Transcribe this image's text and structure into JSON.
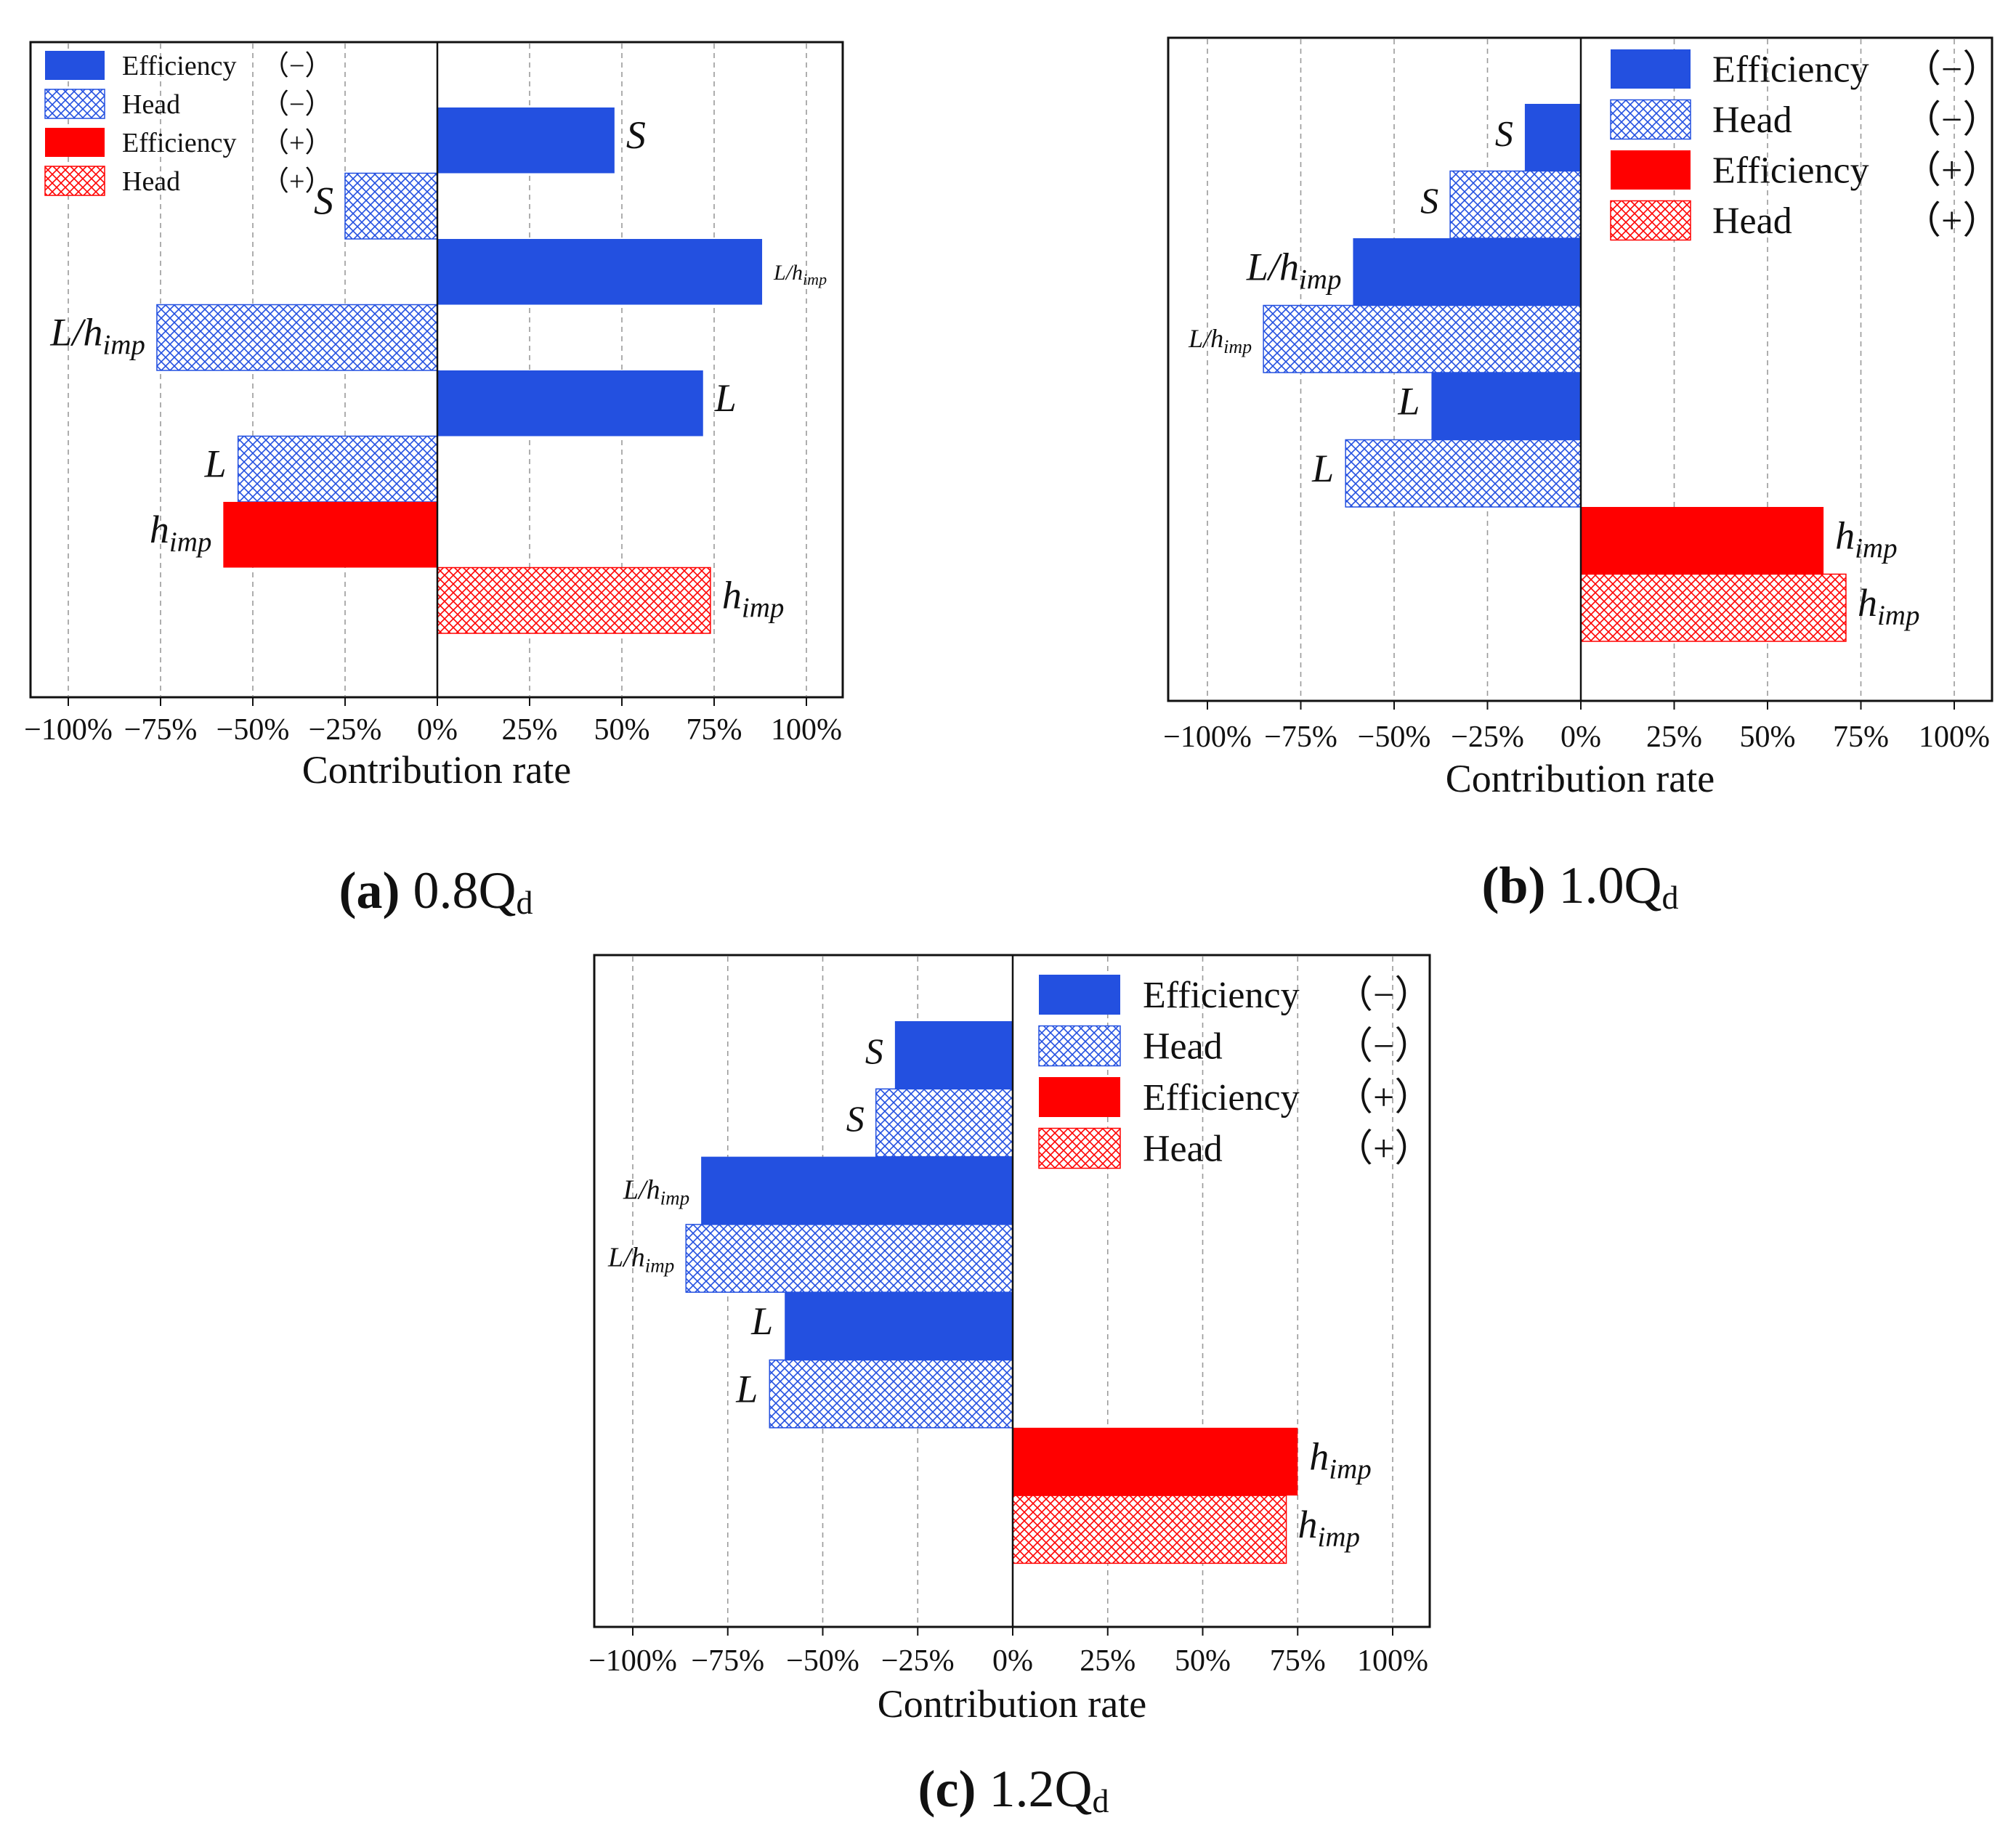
{
  "figure": {
    "xlabel": "Contribution rate",
    "x_ticks": [
      "−100%",
      "−75%",
      "−50%",
      "−25%",
      "0%",
      "25%",
      "50%",
      "75%",
      "100%"
    ],
    "legend": [
      {
        "label": "Efficiency",
        "sign": "（−）",
        "color": "#2350E0",
        "pattern": "solid"
      },
      {
        "label": "Head",
        "sign": "（−）",
        "color": "#2350E0",
        "pattern": "crosshatch"
      },
      {
        "label": "Efficiency",
        "sign": "（+）",
        "color": "#FF0000",
        "pattern": "solid"
      },
      {
        "label": "Head",
        "sign": "（+）",
        "color": "#FF0000",
        "pattern": "crosshatch"
      }
    ],
    "colors": {
      "negative": "#2350E0",
      "positive": "#FF0000"
    }
  },
  "chart_data": [
    {
      "type": "bar",
      "orientation": "horizontal",
      "caption_letter": "(a)",
      "caption_text": "0.8Q",
      "caption_sub": "d",
      "xlabel": "Contribution rate",
      "xlim": [
        -1.1,
        1.1
      ],
      "x_ticks": [
        "−100%",
        "−75%",
        "−50%",
        "−25%",
        "0%",
        "25%",
        "50%",
        "75%",
        "100%"
      ],
      "legend_position": "top-left",
      "bars": [
        {
          "variable": "S",
          "series": "Efficiency (−)",
          "value": 0.48,
          "label_side": "right"
        },
        {
          "variable": "S",
          "series": "Head (−)",
          "value": -0.25,
          "label_side": "left"
        },
        {
          "variable": "L/h_imp",
          "series": "Efficiency (−)",
          "value": 0.88,
          "label_side": "right"
        },
        {
          "variable": "L/h_imp",
          "series": "Head (−)",
          "value": -0.76,
          "label_side": "left"
        },
        {
          "variable": "L",
          "series": "Efficiency (−)",
          "value": 0.72,
          "label_side": "right"
        },
        {
          "variable": "L",
          "series": "Head (−)",
          "value": -0.54,
          "label_side": "left"
        },
        {
          "variable": "h_imp",
          "series": "Efficiency (+)",
          "value": -0.58,
          "label_side": "left"
        },
        {
          "variable": "h_imp",
          "series": "Head (+)",
          "value": 0.74,
          "label_side": "right"
        }
      ]
    },
    {
      "type": "bar",
      "orientation": "horizontal",
      "caption_letter": "(b)",
      "caption_text": "1.0Q",
      "caption_sub": "d",
      "xlabel": "Contribution rate",
      "xlim": [
        -1.1,
        1.1
      ],
      "x_ticks": [
        "−100%",
        "−75%",
        "−50%",
        "−25%",
        "0%",
        "25%",
        "50%",
        "75%",
        "100%"
      ],
      "legend_position": "top-right",
      "bars": [
        {
          "variable": "S",
          "series": "Efficiency (−)",
          "value": -0.15,
          "label_side": "left"
        },
        {
          "variable": "S",
          "series": "Head (−)",
          "value": -0.35,
          "label_side": "left"
        },
        {
          "variable": "L/h_imp",
          "series": "Efficiency (−)",
          "value": -0.61,
          "label_side": "left"
        },
        {
          "variable": "L/h_imp",
          "series": "Head (−)",
          "value": -0.85,
          "label_side": "left"
        },
        {
          "variable": "L",
          "series": "Efficiency (−)",
          "value": -0.4,
          "label_side": "left"
        },
        {
          "variable": "L",
          "series": "Head (−)",
          "value": -0.63,
          "label_side": "left"
        },
        {
          "variable": "h_imp",
          "series": "Efficiency (+)",
          "value": 0.65,
          "label_side": "right"
        },
        {
          "variable": "h_imp",
          "series": "Head (+)",
          "value": 0.71,
          "label_side": "right"
        }
      ]
    },
    {
      "type": "bar",
      "orientation": "horizontal",
      "caption_letter": "(c)",
      "caption_text": "1.2Q",
      "caption_sub": "d",
      "xlabel": "Contribution rate",
      "xlim": [
        -1.1,
        1.1
      ],
      "x_ticks": [
        "−100%",
        "−75%",
        "−50%",
        "−25%",
        "0%",
        "25%",
        "50%",
        "75%",
        "100%"
      ],
      "legend_position": "top-right",
      "bars": [
        {
          "variable": "S",
          "series": "Efficiency (−)",
          "value": -0.31,
          "label_side": "left"
        },
        {
          "variable": "S",
          "series": "Head (−)",
          "value": -0.36,
          "label_side": "left"
        },
        {
          "variable": "L/h_imp",
          "series": "Efficiency (−)",
          "value": -0.82,
          "label_side": "left"
        },
        {
          "variable": "L/h_imp",
          "series": "Head (−)",
          "value": -0.86,
          "label_side": "left"
        },
        {
          "variable": "L",
          "series": "Efficiency (−)",
          "value": -0.6,
          "label_side": "left"
        },
        {
          "variable": "L",
          "series": "Head (−)",
          "value": -0.64,
          "label_side": "left"
        },
        {
          "variable": "h_imp",
          "series": "Efficiency (+)",
          "value": 0.75,
          "label_side": "right"
        },
        {
          "variable": "h_imp",
          "series": "Head (+)",
          "value": 0.72,
          "label_side": "right"
        }
      ]
    }
  ]
}
